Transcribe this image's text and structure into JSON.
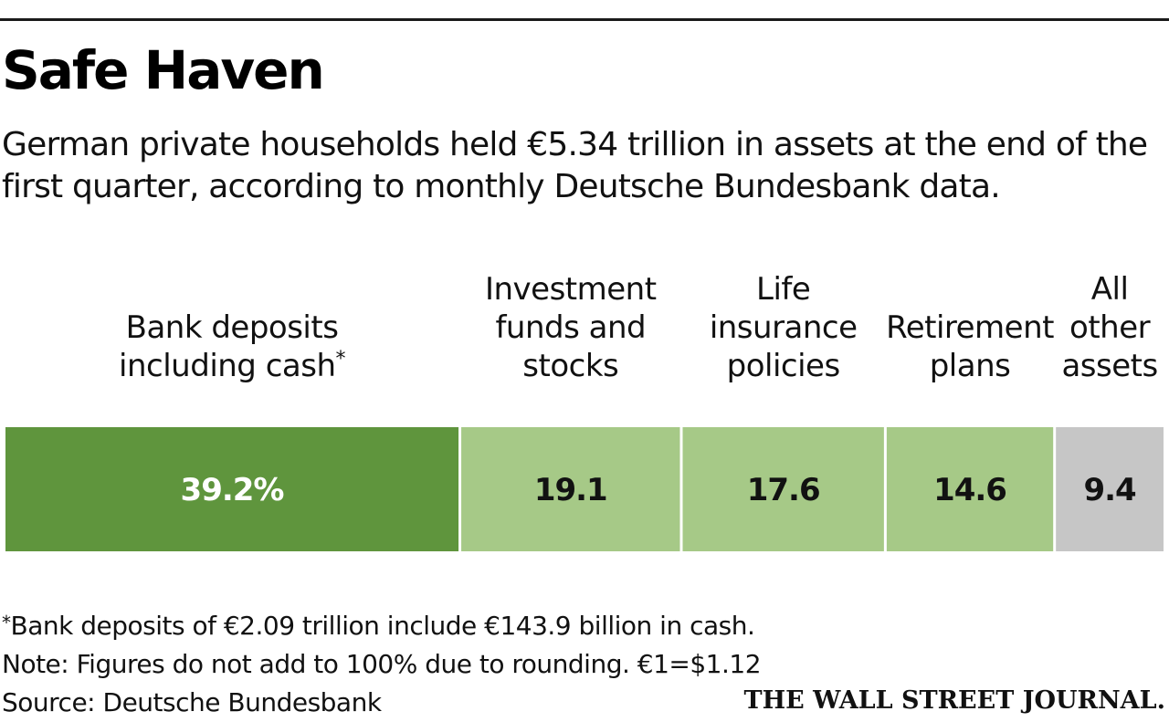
{
  "header": {
    "title": "Safe Haven",
    "subtitle": "German private households held €5.34 trillion in assets at the end of the first quarter, according to monthly Deutsche Bundesbank data."
  },
  "chart_data": {
    "type": "bar",
    "orientation": "horizontal-stacked-100",
    "unit": "%",
    "categories": [
      "Bank deposits including cash*",
      "Investment funds and stocks",
      "Life insurance policies",
      "Retirement plans",
      "All other assets"
    ],
    "values": [
      39.2,
      19.1,
      17.6,
      14.6,
      9.4
    ],
    "value_labels": [
      "39.2%",
      "19.1",
      "17.6",
      "14.6",
      "9.4"
    ],
    "colors": [
      "#5f953d",
      "#a6c987",
      "#a6c987",
      "#a6c987",
      "#c6c6c6"
    ],
    "label_colors": [
      "#ffffff",
      "#111111",
      "#111111",
      "#111111",
      "#111111"
    ],
    "category_lines": [
      [
        "Bank deposits",
        "including cash"
      ],
      [
        "Investment",
        "funds and",
        "stocks"
      ],
      [
        "Life",
        "insurance",
        "policies"
      ],
      [
        "Retirement",
        "plans"
      ],
      [
        "All",
        "other",
        "assets"
      ]
    ],
    "footnote_marks": [
      "*",
      "",
      "",
      "",
      ""
    ]
  },
  "footer": {
    "footnote_mark": "*",
    "footnote": "Bank deposits of €2.09 trillion include €143.9 billion in cash.",
    "note": "Note: Figures do not add to 100% due to rounding. €1=$1.12",
    "source": "Source: Deutsche Bundesbank",
    "publisher": "THE WALL STREET JOURNAL."
  }
}
